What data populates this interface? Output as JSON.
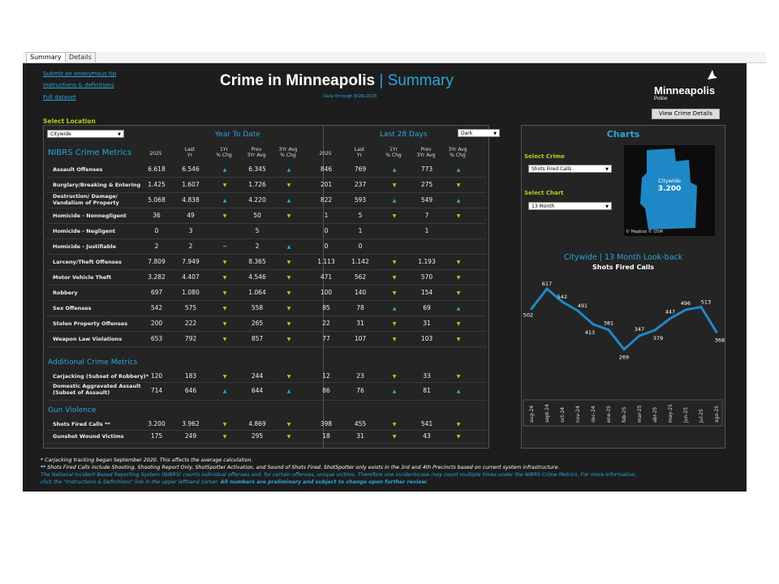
{
  "tabs": [
    "Summary",
    "Details"
  ],
  "links": [
    "Submit an anonymous tip",
    "Instructions & definitions",
    "Full dataset"
  ],
  "title": {
    "main": "Crime in Minneapolis",
    "sep": "|",
    "sub": "Summary",
    "data_through": "Data through 8/26/2025"
  },
  "logo": {
    "name": "Minneapolis",
    "dept": "Police"
  },
  "view_crime_details": "View Crime Details",
  "select_location_label": "Select Location",
  "location_value": "Citywide",
  "theme_value": "Dark",
  "ytd_header": "Year To Date",
  "l28_header": "Last 28 Days",
  "nibrs_header": "NIBRS Crime Metrics",
  "col_headers": [
    "2025",
    "Last\nYr",
    "1Yr\n% Chg",
    "Prev\n3Yr Avg",
    "3Yr Avg\n% Chg",
    "2025",
    "Last\nYr",
    "1Yr\n% Chg",
    "Prev\n3Yr Avg",
    "3Yr Avg\n% Chg"
  ],
  "rows": [
    {
      "name": "Assault Offenses",
      "v": [
        "6.618",
        "6.546",
        "up",
        "6.345",
        "up",
        "846",
        "769",
        "up",
        "773",
        "up"
      ]
    },
    {
      "name": "Burglary/Breaking & Entering",
      "v": [
        "1.425",
        "1.607",
        "dn",
        "1.726",
        "dn",
        "201",
        "237",
        "dn",
        "275",
        "dn"
      ]
    },
    {
      "name": "Destruction/ Damage/\nVandalism of Property",
      "v": [
        "5.068",
        "4.838",
        "up",
        "4.220",
        "up",
        "822",
        "593",
        "up",
        "549",
        "up"
      ]
    },
    {
      "name": "Homicide - Nonnegligent",
      "v": [
        "36",
        "49",
        "dn",
        "50",
        "dn",
        "1",
        "5",
        "dn",
        "7",
        "dn"
      ]
    },
    {
      "name": "Homicide - Negligent",
      "v": [
        "0",
        "3",
        "",
        "5",
        "",
        "0",
        "1",
        "",
        "1",
        ""
      ]
    },
    {
      "name": "Homicide - Justifiable",
      "v": [
        "2",
        "2",
        "eq",
        "2",
        "up",
        "0",
        "0",
        "",
        "",
        ""
      ]
    },
    {
      "name": "Larceny/Theft Offenses",
      "v": [
        "7.809",
        "7.949",
        "dn",
        "8.365",
        "dn",
        "1.113",
        "1.142",
        "dn",
        "1.193",
        "dn"
      ]
    },
    {
      "name": "Motor Vehicle Theft",
      "v": [
        "3.282",
        "4.407",
        "dn",
        "4.546",
        "dn",
        "471",
        "562",
        "dn",
        "570",
        "dn"
      ]
    },
    {
      "name": "Robbery",
      "v": [
        "697",
        "1.080",
        "dn",
        "1.064",
        "dn",
        "100",
        "140",
        "dn",
        "154",
        "dn"
      ]
    },
    {
      "name": "Sex Offenses",
      "v": [
        "542",
        "575",
        "dn",
        "558",
        "dn",
        "85",
        "78",
        "up",
        "69",
        "up"
      ]
    },
    {
      "name": "Stolen Property Offenses",
      "v": [
        "200",
        "222",
        "dn",
        "265",
        "dn",
        "22",
        "31",
        "dn",
        "31",
        "dn"
      ]
    },
    {
      "name": "Weapon Law Violations",
      "v": [
        "653",
        "792",
        "dn",
        "857",
        "dn",
        "77",
        "107",
        "dn",
        "103",
        "dn"
      ]
    }
  ],
  "additional_header": "Additional Crime Metrics",
  "additional_rows": [
    {
      "name": "Carjacking (Subset of Robbery)*",
      "v": [
        "120",
        "183",
        "dn",
        "244",
        "dn",
        "12",
        "23",
        "dn",
        "33",
        "dn"
      ]
    },
    {
      "name": "Domestic Aggravated Assault\n(Subset of Assault)",
      "v": [
        "714",
        "646",
        "up",
        "644",
        "up",
        "86",
        "76",
        "up",
        "81",
        "up"
      ]
    }
  ],
  "gun_header": "Gun Violence",
  "gun_rows": [
    {
      "name": "Shots Fired Calls **",
      "v": [
        "3.200",
        "3.962",
        "dn",
        "4.869",
        "dn",
        "398",
        "455",
        "dn",
        "541",
        "dn"
      ]
    },
    {
      "name": "Gunshot Wound Victims",
      "v": [
        "175",
        "249",
        "dn",
        "295",
        "dn",
        "18",
        "31",
        "dn",
        "43",
        "dn"
      ]
    }
  ],
  "charts_panel": {
    "title": "Charts",
    "select_crime_label": "Select Crime",
    "crime_value": "Shots Fired Calls",
    "select_chart_label": "Select Chart",
    "chart_value": "13 Month",
    "map_label": "Citywide",
    "map_value": "3.200",
    "map_credit": "© Mapbox © OSM"
  },
  "chart_data": {
    "type": "line",
    "title": "Citywide | 13 Month Look-back",
    "subtitle": "Shots Fired Calls",
    "categories": [
      "aug-24",
      "sept-24",
      "oct-24",
      "nov-24",
      "dec-24",
      "ene-25",
      "feb-25",
      "mar-25",
      "abr-25",
      "may-25",
      "jun-25",
      "jul-25",
      "ago-25"
    ],
    "values": [
      502,
      617,
      542,
      491,
      413,
      381,
      269,
      347,
      379,
      447,
      496,
      513,
      368
    ],
    "ylim": [
      230,
      650
    ],
    "color": "#1e88c7"
  },
  "footnotes": [
    "* Carjacking tracking began September 2020.  This affects the average calculation.",
    "** Shots Fired Calls include Shooting, Shooting Report Only, ShotSpotter Activation, and Sound of Shots Fired.  ShotSpotter only exists in the 3rd and 4th Precincts based on current system infrastructure.",
    "The National Incident Based Reporting System (NIBRS) counts individual offenses and, for certain offenses, unique victims.  Therefore one incident/case may count multiple times under the NIBRS Crime Metrics.  For more information,",
    "click the \"Instructions & Definitions\" link in the upper lefthand corner.",
    "All numbers are preliminary and subject to change upon further review."
  ]
}
